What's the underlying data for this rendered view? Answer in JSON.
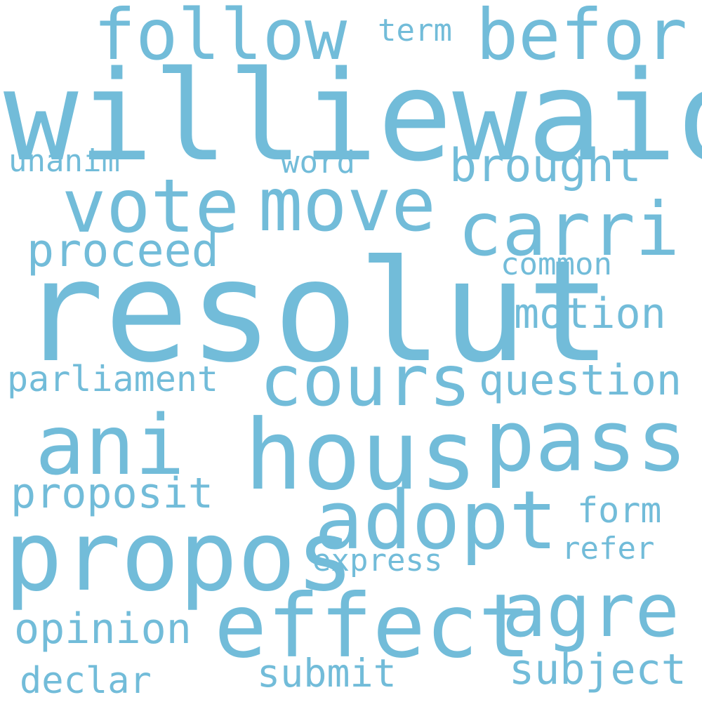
{
  "cloud": {
    "word_color": "#72bcd9",
    "background": "#ffffff",
    "words": {
      "williewaiola": "williewaiola",
      "resolut": "resolut",
      "hous": "hous",
      "propos": "propos",
      "effect": "effect",
      "pass": "pass",
      "adopt": "adopt",
      "ani": "ani",
      "cours": "cours",
      "vote": "vote",
      "move": "move",
      "carri": "carri",
      "agre": "agre",
      "follow": "follow",
      "befor": "befor",
      "brought": "brought",
      "proceed": "proceed",
      "motion": "motion",
      "question": "question",
      "proposit": "proposit",
      "opinion": "opinion",
      "subject": "subject",
      "submit": "submit",
      "declar": "declar",
      "parliament": "parliament",
      "form": "form",
      "unanim": "unanim",
      "word": "word",
      "refer": "refer",
      "express": "express",
      "common": "common",
      "term": "term"
    }
  }
}
